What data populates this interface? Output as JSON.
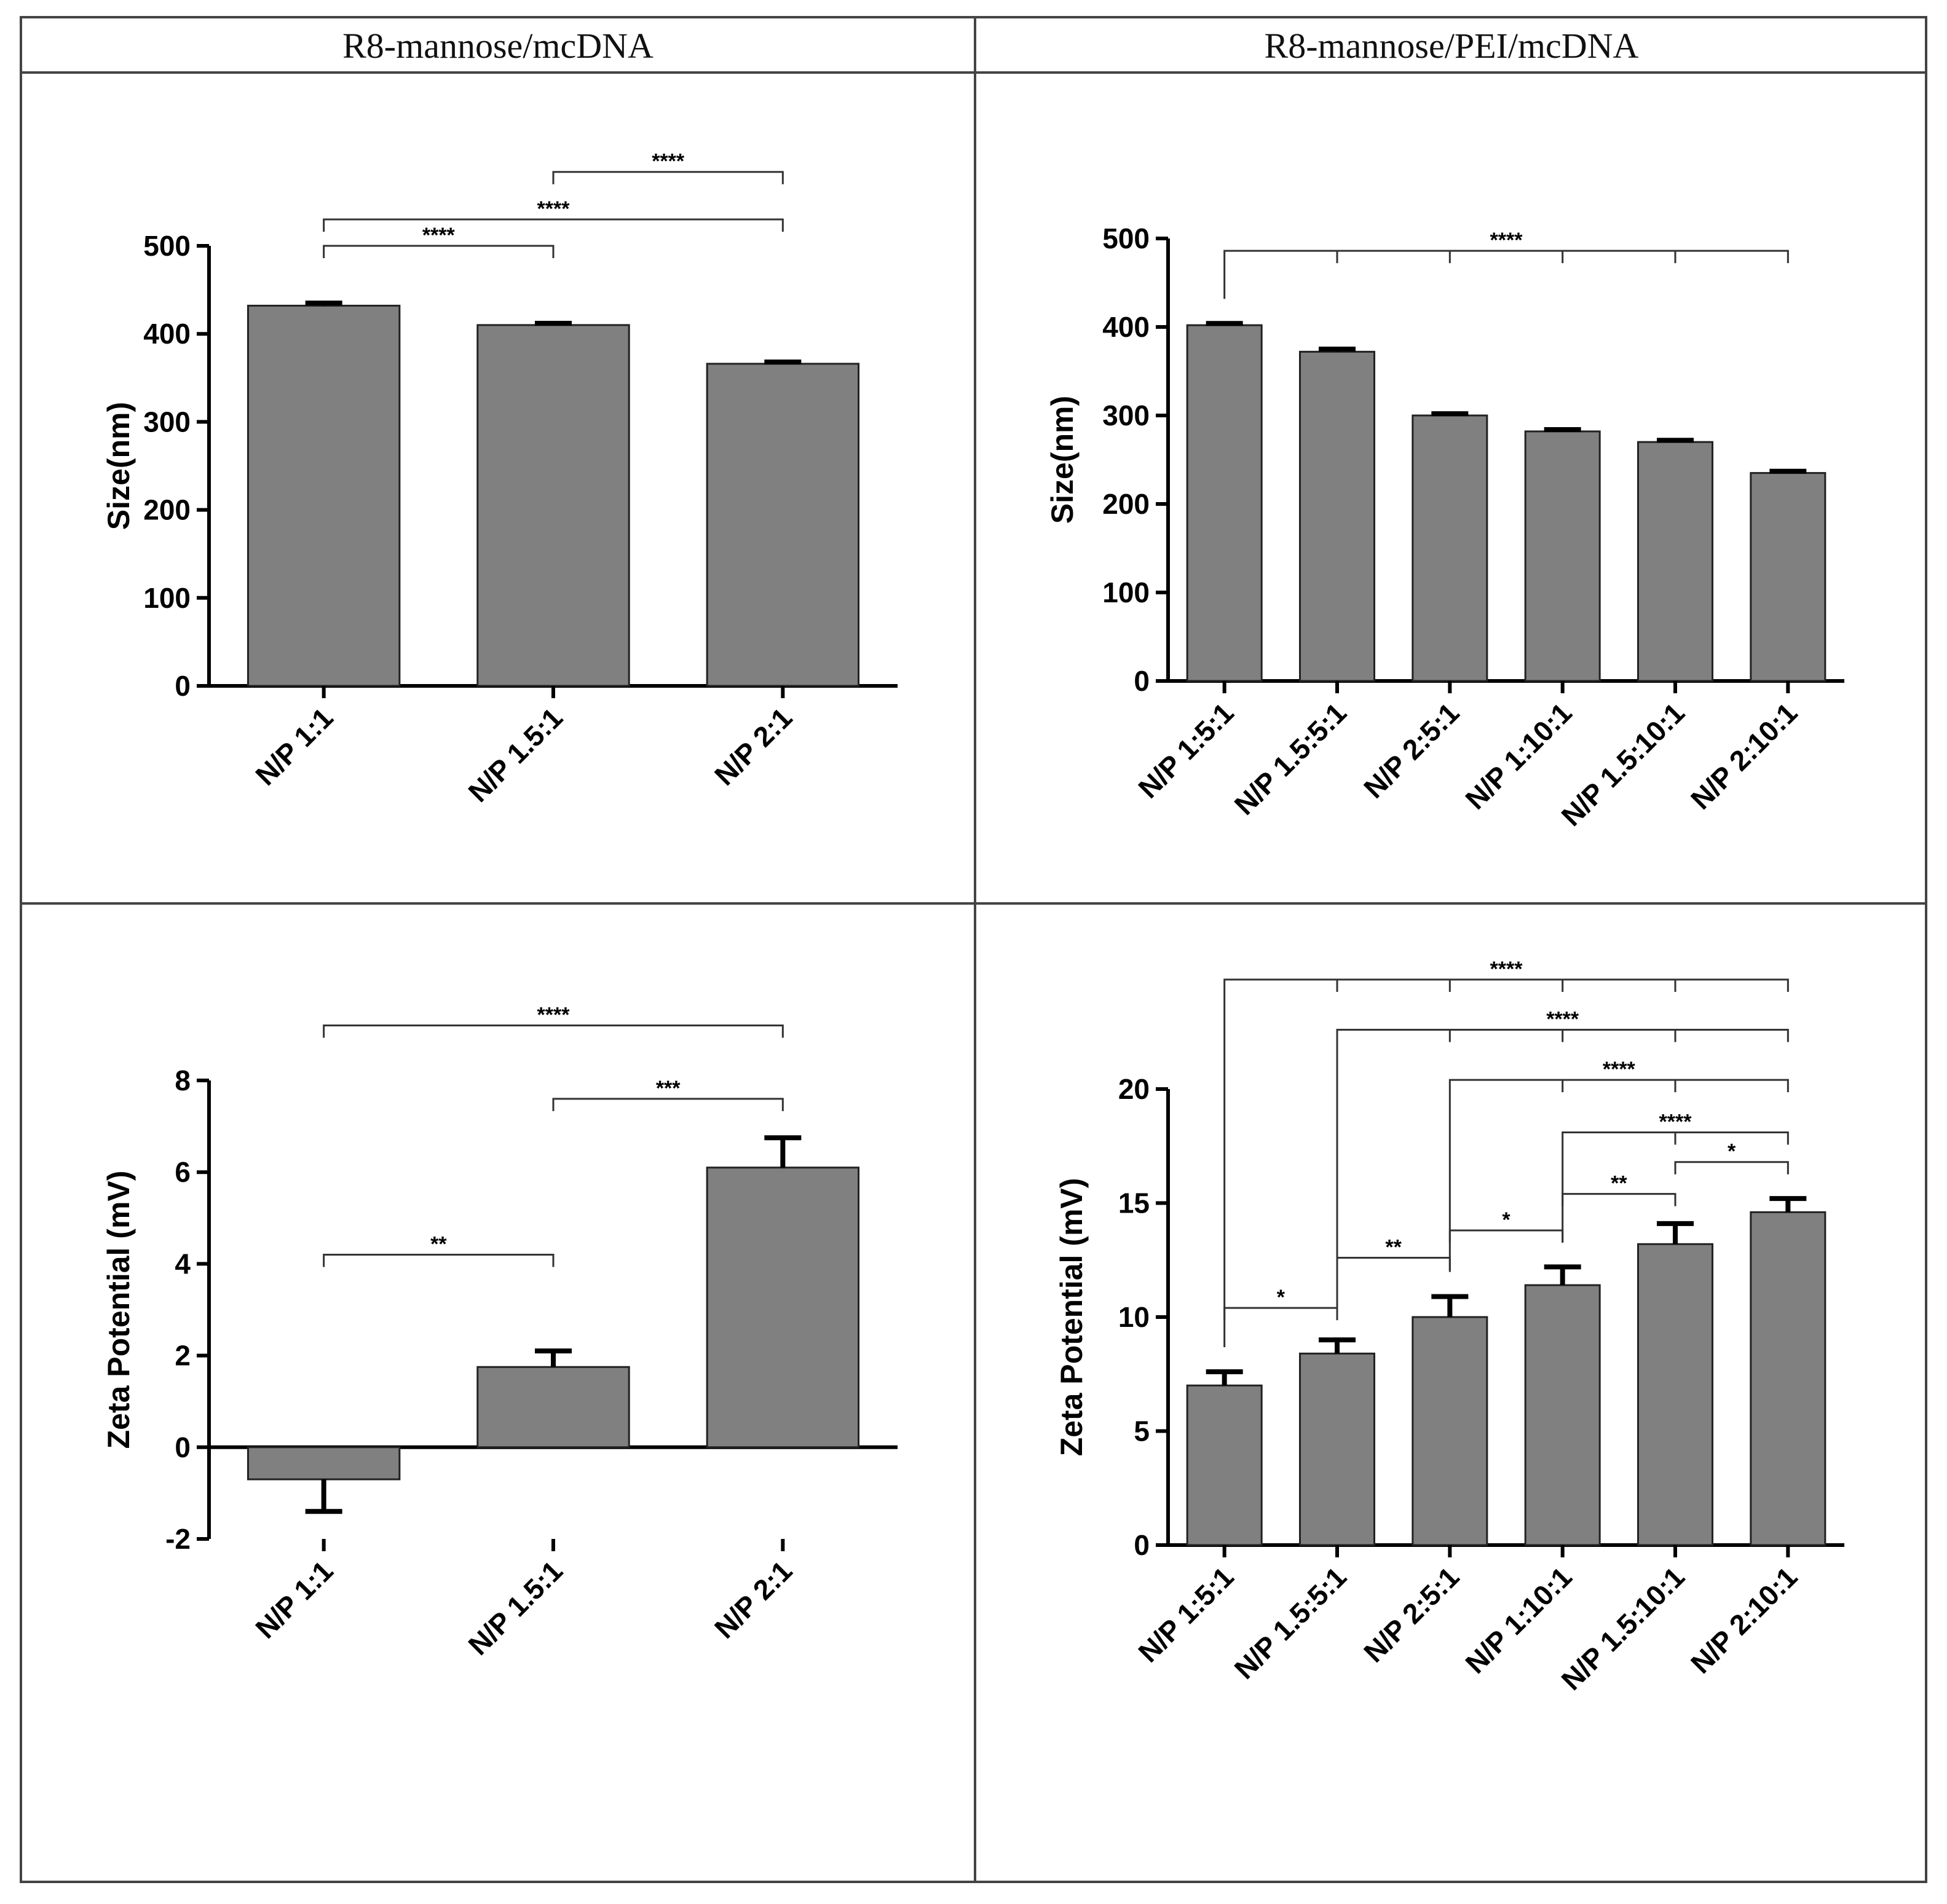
{
  "panels": {
    "left_header": "R8-mannose/mcDNA",
    "right_header": "R8-mannose/PEI/mcDNA"
  },
  "chart_data": [
    {
      "id": "size_r8",
      "type": "bar",
      "column": "R8-mannose/mcDNA",
      "ylabel": "Size(nm)",
      "xlabel": "",
      "ylim": [
        0,
        500
      ],
      "yticks": [
        0,
        100,
        200,
        300,
        400,
        500
      ],
      "categories": [
        "N/P 1:1",
        "N/P 1.5:1",
        "N/P 2:1"
      ],
      "values": [
        432,
        410,
        366
      ],
      "errors": [
        3,
        2,
        2
      ],
      "significance": [
        {
          "from": 0,
          "to": 1,
          "label": "****",
          "level": 500
        },
        {
          "from": 0,
          "to": 2,
          "label": "****",
          "level": 530
        },
        {
          "from": 1,
          "to": 2,
          "label": "****",
          "level": 584
        }
      ]
    },
    {
      "id": "size_pei",
      "type": "bar",
      "column": "R8-mannose/PEI/mcDNA",
      "ylabel": "Size(nm)",
      "xlabel": "",
      "ylim": [
        0,
        500
      ],
      "yticks": [
        0,
        100,
        200,
        300,
        400,
        500
      ],
      "categories": [
        "N/P 1:5:1",
        "N/P 1.5:5:1",
        "N/P 2:5:1",
        "N/P 1:10:1",
        "N/P 1.5:10:1",
        "N/P 2:10:1"
      ],
      "values": [
        402,
        372,
        300,
        282,
        270,
        235
      ],
      "errors": [
        2,
        3,
        2,
        2,
        2,
        2
      ],
      "significance": [
        {
          "from": 0,
          "to": 5,
          "label": "****",
          "level": 486,
          "drops": [
            1,
            2,
            3,
            4
          ]
        }
      ]
    },
    {
      "id": "zeta_r8",
      "type": "bar",
      "column": "R8-mannose/mcDNA",
      "ylabel": "Zeta Potential (mV)",
      "xlabel": "",
      "ylim": [
        -2,
        8
      ],
      "yticks": [
        -2,
        0,
        2,
        4,
        6,
        8
      ],
      "categories": [
        "N/P 1:1",
        "N/P 1.5:1",
        "N/P 2:1"
      ],
      "values": [
        -0.7,
        1.75,
        6.1
      ],
      "errors": [
        0.7,
        0.35,
        0.65
      ],
      "significance": [
        {
          "from": 0,
          "to": 1,
          "label": "**",
          "level": 4.2
        },
        {
          "from": 1,
          "to": 2,
          "label": "***",
          "level": 7.6
        },
        {
          "from": 0,
          "to": 2,
          "label": "****",
          "level": 9.2
        }
      ]
    },
    {
      "id": "zeta_pei",
      "type": "bar",
      "column": "R8-mannose/PEI/mcDNA",
      "ylabel": "Zeta Potential (mV)",
      "xlabel": "",
      "ylim": [
        0,
        20
      ],
      "yticks": [
        0,
        5,
        10,
        15,
        20
      ],
      "categories": [
        "N/P 1:5:1",
        "N/P 1.5:5:1",
        "N/P 2:5:1",
        "N/P 1:10:1",
        "N/P 1.5:10:1",
        "N/P 2:10:1"
      ],
      "values": [
        7.0,
        8.4,
        10.0,
        11.4,
        13.2,
        14.6
      ],
      "errors": [
        0.6,
        0.6,
        0.9,
        0.8,
        0.9,
        0.6
      ],
      "significance": [
        {
          "from": 0,
          "to": 1,
          "label": "*",
          "level": 10.4
        },
        {
          "from": 1,
          "to": 2,
          "label": "**",
          "level": 12.6
        },
        {
          "from": 2,
          "to": 3,
          "label": "*",
          "level": 13.8
        },
        {
          "from": 3,
          "to": 4,
          "label": "**",
          "level": 15.4
        },
        {
          "from": 4,
          "to": 5,
          "label": "*",
          "level": 16.8
        },
        {
          "from": 3,
          "to": 5,
          "label": "****",
          "level": 18.1,
          "drops": [
            4
          ]
        },
        {
          "from": 2,
          "to": 5,
          "label": "****",
          "level": 20.4,
          "drops": [
            3,
            4
          ]
        },
        {
          "from": 1,
          "to": 5,
          "label": "****",
          "level": 22.6,
          "drops": [
            2,
            3,
            4
          ]
        },
        {
          "from": 0,
          "to": 5,
          "label": "****",
          "level": 24.8,
          "drops": [
            1,
            2,
            3,
            4
          ]
        }
      ]
    }
  ]
}
